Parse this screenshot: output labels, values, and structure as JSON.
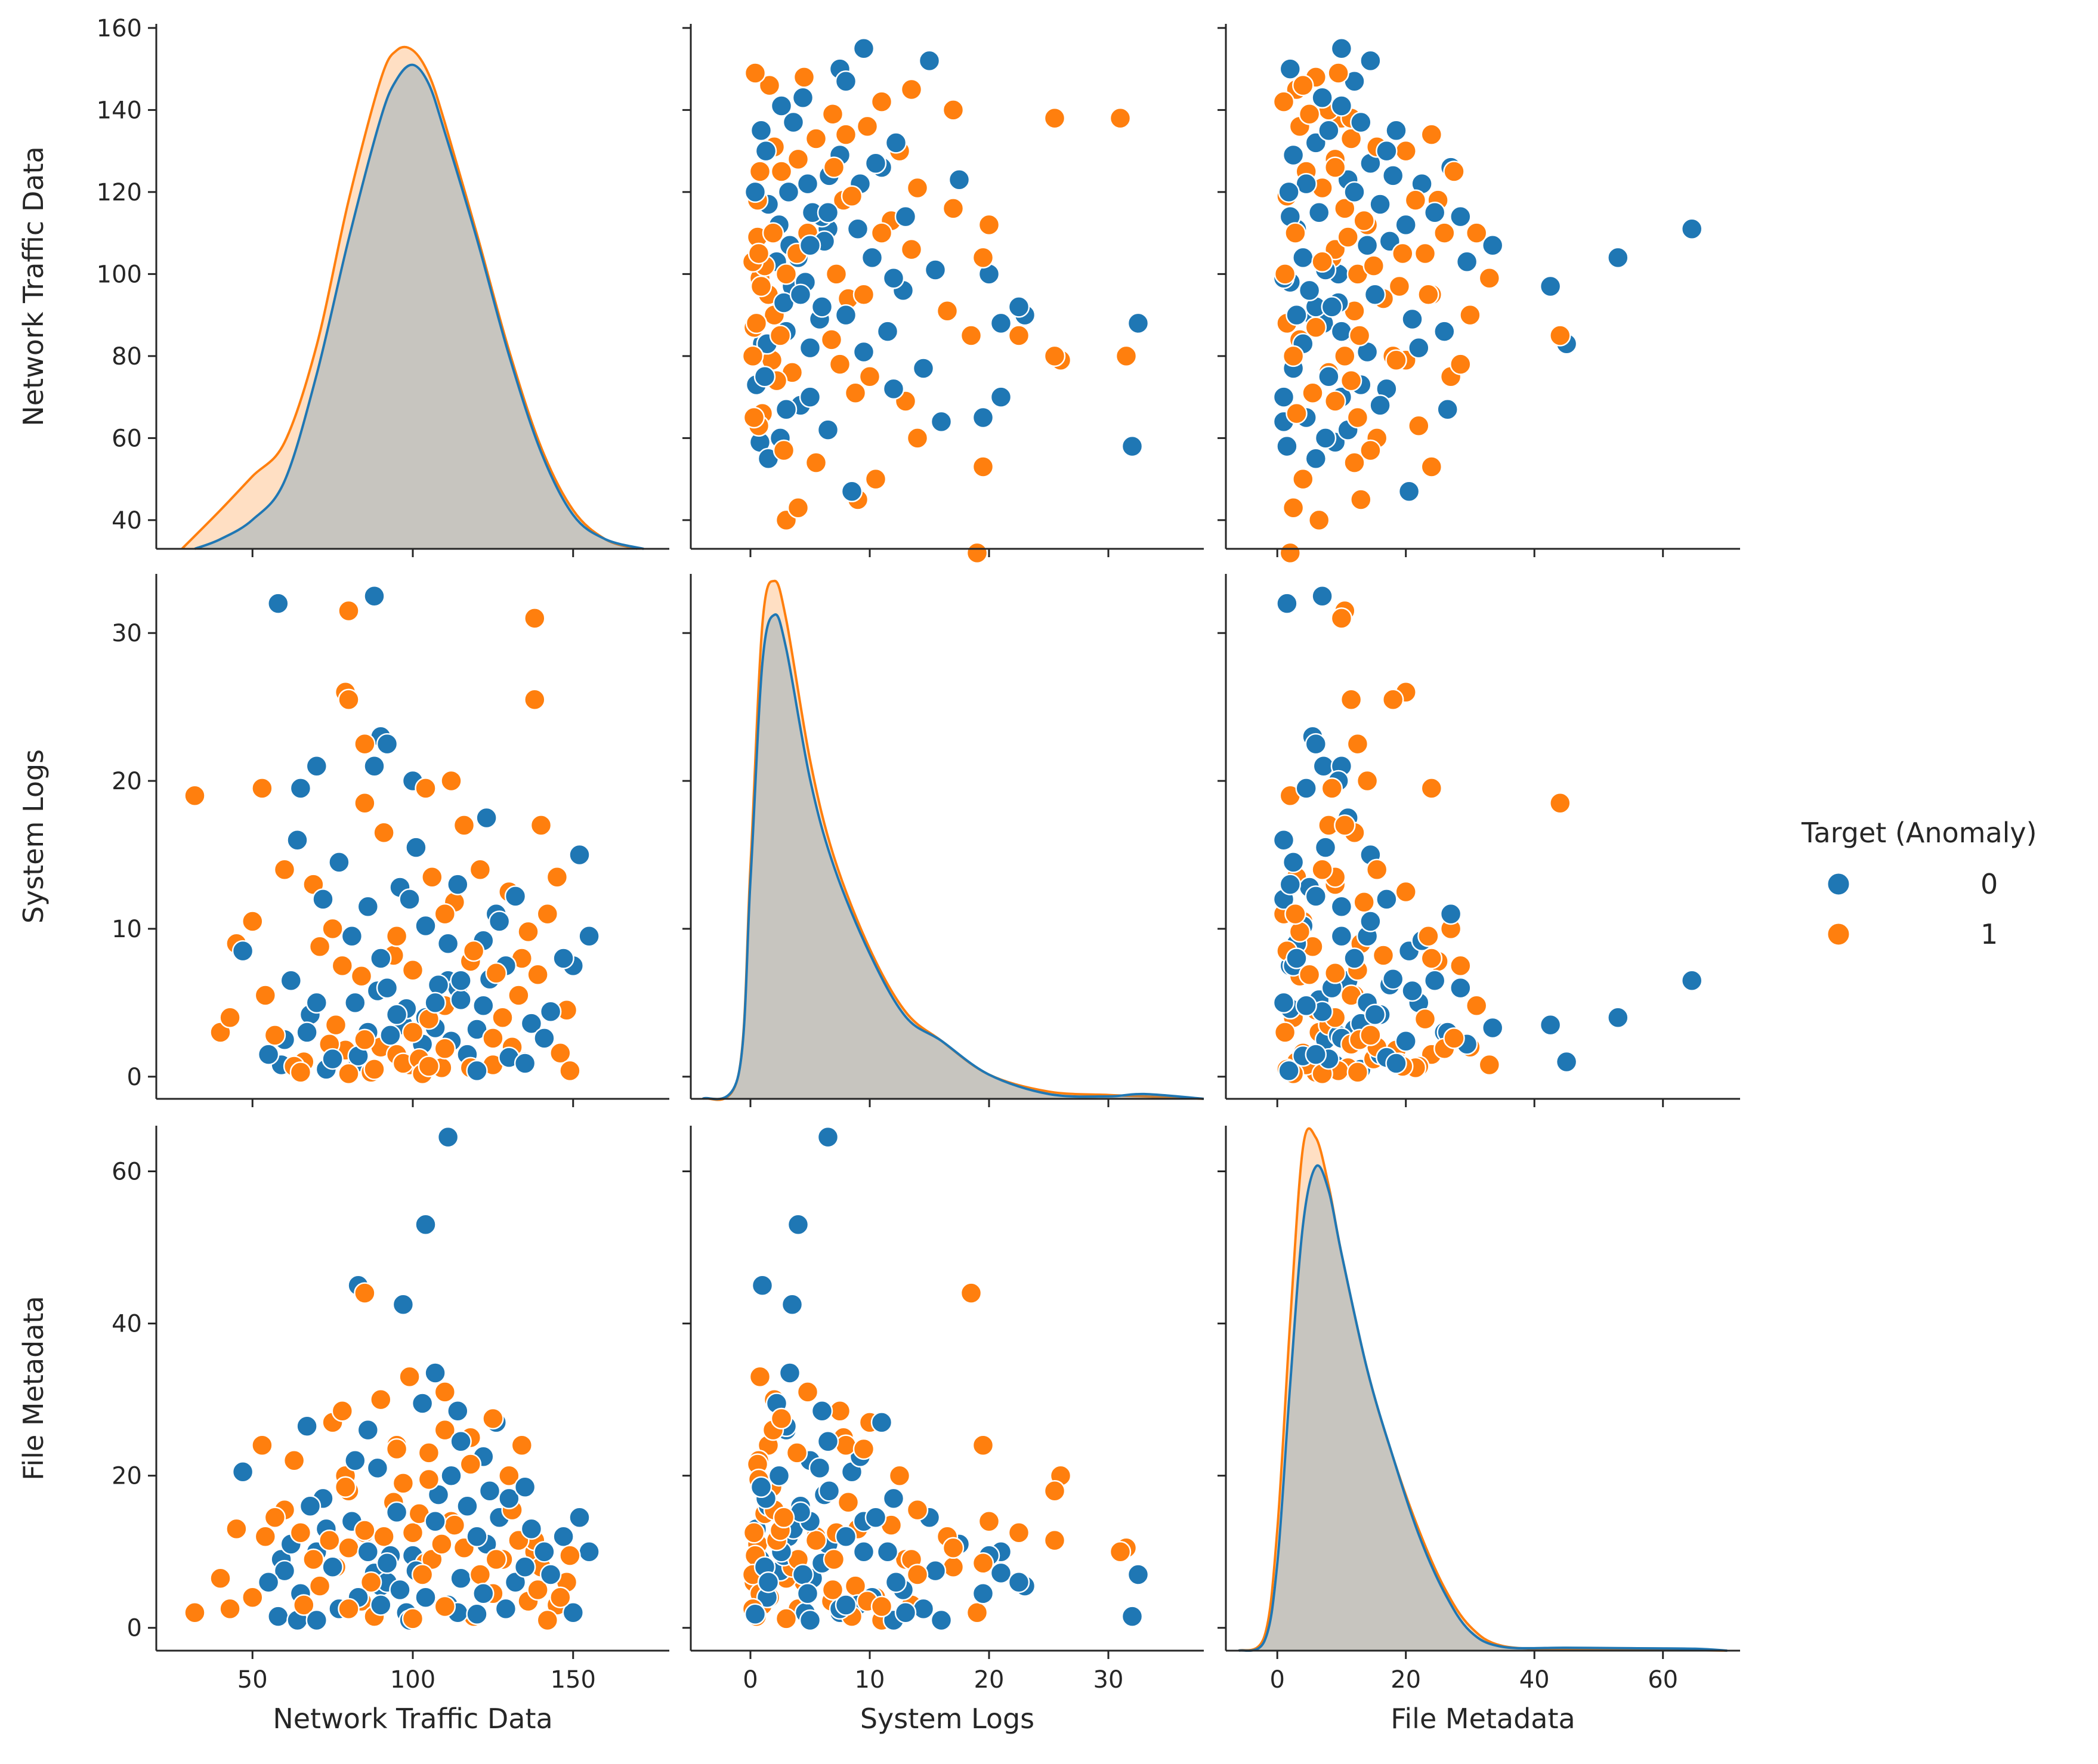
{
  "chart_data": {
    "type": "scatter",
    "subtype": "pairplot",
    "variables": [
      "Network Traffic Data",
      "System Logs",
      "File Metadata"
    ],
    "hue": "Target (Anomaly)",
    "classes": [
      {
        "label": "0",
        "color": "#1f77b4"
      },
      {
        "label": "1",
        "color": "#ff7f0e"
      }
    ],
    "axes": {
      "Network Traffic Data": {
        "label": "Network Traffic Data",
        "range": [
          20,
          180
        ],
        "ticks": [
          50,
          100,
          150
        ],
        "row_ticks": [
          40,
          60,
          80,
          100,
          120,
          140,
          160
        ]
      },
      "System Logs": {
        "label": "System Logs",
        "range": [
          -5,
          38
        ],
        "ticks": [
          0,
          10,
          20,
          30
        ],
        "row_ticks": [
          0,
          10,
          20,
          30
        ]
      },
      "File Metadata": {
        "label": "File Metadata",
        "range": [
          -8,
          72
        ],
        "ticks": [
          0,
          20,
          40,
          60
        ],
        "row_ticks": [
          0,
          20,
          40,
          60
        ]
      }
    },
    "row_ranges": {
      "Network Traffic Data": [
        33,
        161
      ],
      "System Logs": [
        -1.5,
        34
      ],
      "File Metadata": [
        -3,
        66
      ]
    },
    "distributions": {
      "Network Traffic Data": {
        "0": {
          "x": [
            32,
            40,
            50,
            60,
            70,
            80,
            90,
            95,
            100,
            105,
            110,
            120,
            130,
            140,
            150,
            160,
            172
          ],
          "density": [
            0,
            0.02,
            0.06,
            0.14,
            0.36,
            0.64,
            0.89,
            0.97,
            1.0,
            0.96,
            0.86,
            0.64,
            0.4,
            0.2,
            0.07,
            0.02,
            0
          ]
        },
        "1": {
          "x": [
            28,
            40,
            50,
            60,
            70,
            80,
            90,
            95,
            100,
            105,
            110,
            120,
            130,
            140,
            150,
            160,
            170
          ],
          "density": [
            0,
            0.08,
            0.15,
            0.22,
            0.42,
            0.72,
            0.97,
            1.03,
            1.03,
            0.98,
            0.88,
            0.65,
            0.41,
            0.21,
            0.08,
            0.02,
            0
          ]
        }
      },
      "System Logs": {
        "0": {
          "x": [
            -4,
            -1,
            0,
            1,
            2,
            3,
            5,
            7,
            10,
            13,
            16,
            20,
            25,
            30,
            33,
            38
          ],
          "density": [
            0,
            0.05,
            0.45,
            0.9,
            1.0,
            0.93,
            0.66,
            0.48,
            0.3,
            0.17,
            0.12,
            0.05,
            0.01,
            0.005,
            0.01,
            0
          ]
        },
        "1": {
          "x": [
            -4,
            -1,
            0,
            1,
            2,
            3,
            5,
            7,
            10,
            13,
            16,
            20,
            25,
            30,
            33,
            38
          ],
          "density": [
            0,
            0.05,
            0.48,
            0.98,
            1.07,
            0.99,
            0.7,
            0.5,
            0.31,
            0.18,
            0.12,
            0.05,
            0.015,
            0.008,
            0.005,
            0
          ]
        }
      },
      "File Metadata": {
        "0": {
          "x": [
            -6,
            -2,
            0,
            2,
            4,
            6,
            8,
            10,
            14,
            18,
            22,
            26,
            30,
            35,
            45,
            55,
            65,
            70
          ],
          "density": [
            0,
            0.02,
            0.18,
            0.55,
            0.88,
            1.0,
            0.95,
            0.82,
            0.58,
            0.4,
            0.24,
            0.12,
            0.04,
            0.008,
            0.006,
            0.005,
            0.004,
            0
          ]
        },
        "1": {
          "x": [
            -6,
            -2,
            0,
            2,
            4,
            6,
            8,
            10,
            14,
            18,
            22,
            26,
            30,
            35,
            45,
            55,
            65,
            70
          ],
          "density": [
            0,
            0.03,
            0.25,
            0.68,
            1.04,
            1.06,
            0.96,
            0.82,
            0.58,
            0.4,
            0.25,
            0.13,
            0.05,
            0.01,
            0.003,
            0.002,
            0.001,
            0
          ]
        }
      }
    },
    "points": {
      "columns": [
        "Network Traffic Data",
        "System Logs",
        "File Metadata",
        "Target (Anomaly)"
      ],
      "rows": [
        [
          58,
          32.0,
          1.5,
          0
        ],
        [
          88,
          32.5,
          7.0,
          0
        ],
        [
          80,
          31.5,
          10.5,
          1
        ],
        [
          138,
          31.0,
          10.0,
          1
        ],
        [
          111,
          6.5,
          64.5,
          0
        ],
        [
          104,
          4.0,
          53.0,
          0
        ],
        [
          83,
          1.0,
          45.0,
          0
        ],
        [
          97,
          3.5,
          42.5,
          0
        ],
        [
          85,
          18.5,
          44.0,
          1
        ],
        [
          59,
          0.8,
          9.0,
          0
        ],
        [
          32,
          19.0,
          2.0,
          1
        ],
        [
          138,
          25.5,
          11.5,
          1
        ],
        [
          90,
          23.0,
          5.5,
          0
        ],
        [
          88,
          21.0,
          7.2,
          0
        ],
        [
          92,
          22.5,
          6.0,
          0
        ],
        [
          79,
          26.0,
          20.0,
          1
        ],
        [
          80,
          25.5,
          18.0,
          1
        ],
        [
          70,
          21.0,
          10.0,
          0
        ],
        [
          65,
          19.5,
          4.5,
          0
        ],
        [
          53,
          19.5,
          24.0,
          1
        ],
        [
          85,
          22.5,
          12.5,
          1
        ],
        [
          100,
          20.0,
          9.5,
          0
        ],
        [
          104,
          19.5,
          8.5,
          1
        ],
        [
          112,
          20.0,
          14.0,
          1
        ],
        [
          123,
          17.5,
          11.0,
          0
        ],
        [
          140,
          17.0,
          8.0,
          1
        ],
        [
          145,
          13.5,
          3.0,
          1
        ],
        [
          152,
          15.0,
          14.5,
          0
        ],
        [
          155,
          9.5,
          10.0,
          0
        ],
        [
          150,
          7.5,
          2.0,
          0
        ],
        [
          148,
          4.5,
          6.0,
          1
        ],
        [
          40,
          3.0,
          6.5,
          1
        ],
        [
          43,
          4.0,
          2.5,
          1
        ],
        [
          45,
          9.0,
          13.0,
          1
        ],
        [
          47,
          8.5,
          20.5,
          0
        ],
        [
          50,
          10.5,
          4.0,
          1
        ],
        [
          54,
          5.5,
          12.0,
          1
        ],
        [
          60,
          14.0,
          15.5,
          1
        ],
        [
          64,
          16.0,
          1.0,
          0
        ],
        [
          69,
          13.0,
          9.0,
          1
        ],
        [
          72,
          12.0,
          17.0,
          0
        ],
        [
          75,
          10.0,
          27.0,
          1
        ],
        [
          78,
          7.5,
          28.5,
          1
        ],
        [
          82,
          5.0,
          22.0,
          0
        ],
        [
          86,
          3.0,
          26.0,
          0
        ],
        [
          90,
          2.0,
          30.0,
          1
        ],
        [
          95,
          1.5,
          24.0,
          1
        ],
        [
          99,
          0.8,
          33.0,
          1
        ],
        [
          103,
          2.2,
          29.5,
          0
        ],
        [
          107,
          3.3,
          33.5,
          0
        ],
        [
          110,
          4.8,
          31.0,
          1
        ],
        [
          114,
          6.0,
          28.5,
          0
        ],
        [
          118,
          7.8,
          25.0,
          1
        ],
        [
          122,
          9.2,
          22.5,
          0
        ],
        [
          126,
          11.0,
          27.0,
          0
        ],
        [
          130,
          12.5,
          20.0,
          1
        ],
        [
          134,
          8.0,
          24.0,
          1
        ],
        [
          60,
          2.5,
          7.5,
          0
        ],
        [
          62,
          6.5,
          11.0,
          0
        ],
        [
          66,
          1.0,
          3.0,
          1
        ],
        [
          68,
          4.2,
          16.0,
          0
        ],
        [
          71,
          8.8,
          5.5,
          1
        ],
        [
          73,
          0.5,
          13.0,
          0
        ],
        [
          76,
          3.5,
          8.0,
          1
        ],
        [
          77,
          14.5,
          2.5,
          0
        ],
        [
          79,
          1.8,
          18.5,
          1
        ],
        [
          81,
          9.5,
          14.0,
          0
        ],
        [
          84,
          6.8,
          3.5,
          1
        ],
        [
          86,
          11.5,
          10.0,
          0
        ],
        [
          87,
          0.3,
          6.0,
          1
        ],
        [
          89,
          5.8,
          21.0,
          0
        ],
        [
          91,
          16.5,
          12.0,
          1
        ],
        [
          93,
          2.8,
          9.5,
          0
        ],
        [
          94,
          8.2,
          16.5,
          1
        ],
        [
          96,
          12.8,
          5.0,
          0
        ],
        [
          97,
          0.9,
          19.0,
          1
        ],
        [
          98,
          4.6,
          2.0,
          0
        ],
        [
          100,
          7.2,
          12.5,
          1
        ],
        [
          101,
          15.5,
          7.5,
          0
        ],
        [
          102,
          1.2,
          15.0,
          1
        ],
        [
          104,
          10.2,
          4.0,
          0
        ],
        [
          105,
          3.9,
          23.0,
          1
        ],
        [
          106,
          13.5,
          9.0,
          1
        ],
        [
          108,
          6.2,
          17.5,
          0
        ],
        [
          109,
          0.6,
          11.0,
          1
        ],
        [
          111,
          9.0,
          3.0,
          0
        ],
        [
          112,
          2.4,
          20.0,
          0
        ],
        [
          113,
          11.8,
          13.5,
          1
        ],
        [
          115,
          5.2,
          6.5,
          0
        ],
        [
          116,
          17.0,
          10.5,
          1
        ],
        [
          117,
          1.5,
          16.0,
          0
        ],
        [
          119,
          8.5,
          1.5,
          1
        ],
        [
          120,
          3.2,
          12.0,
          0
        ],
        [
          121,
          14.0,
          7.0,
          1
        ],
        [
          124,
          6.6,
          18.0,
          0
        ],
        [
          125,
          0.8,
          4.5,
          1
        ],
        [
          127,
          10.5,
          14.5,
          0
        ],
        [
          128,
          4.0,
          9.0,
          1
        ],
        [
          129,
          7.5,
          2.5,
          0
        ],
        [
          131,
          2.0,
          15.5,
          1
        ],
        [
          132,
          12.2,
          6.0,
          0
        ],
        [
          133,
          5.5,
          11.5,
          1
        ],
        [
          135,
          1.0,
          8.0,
          0
        ],
        [
          136,
          9.8,
          3.5,
          1
        ],
        [
          137,
          3.6,
          13.0,
          0
        ],
        [
          139,
          6.9,
          5.0,
          1
        ],
        [
          141,
          2.6,
          10.0,
          0
        ],
        [
          142,
          11.0,
          1.0,
          1
        ],
        [
          143,
          4.4,
          7.0,
          0
        ],
        [
          146,
          1.6,
          4.0,
          1
        ],
        [
          147,
          8.0,
          12.0,
          0
        ],
        [
          149,
          0.4,
          9.5,
          1
        ],
        [
          63,
          0.7,
          22.0,
          1
        ],
        [
          67,
          3.0,
          26.5,
          0
        ],
        [
          74,
          2.2,
          11.5,
          1
        ],
        [
          83,
          1.4,
          4.0,
          0
        ],
        [
          88,
          0.5,
          1.5,
          1
        ],
        [
          92,
          6.0,
          8.5,
          0
        ],
        [
          95,
          9.5,
          23.5,
          1
        ],
        [
          99,
          12.0,
          1.0,
          0
        ],
        [
          103,
          0.2,
          7.0,
          1
        ],
        [
          107,
          5.0,
          14.0,
          0
        ],
        [
          110,
          1.9,
          26.0,
          1
        ],
        [
          114,
          13.0,
          2.0,
          0
        ],
        [
          118,
          0.6,
          21.5,
          1
        ],
        [
          122,
          4.8,
          4.5,
          0
        ],
        [
          126,
          7.0,
          9.0,
          1
        ],
        [
          130,
          1.3,
          17.0,
          0
        ],
        [
          70,
          5.0,
          1.0,
          0
        ],
        [
          80,
          0.2,
          2.5,
          1
        ],
        [
          90,
          8.0,
          3.0,
          0
        ],
        [
          100,
          3.0,
          1.2,
          1
        ],
        [
          110,
          11.0,
          2.8,
          1
        ],
        [
          120,
          0.4,
          1.8,
          0
        ],
        [
          85,
          2.5,
          12.8,
          1
        ],
        [
          95,
          4.2,
          15.2,
          0
        ],
        [
          105,
          0.7,
          19.5,
          1
        ],
        [
          115,
          6.5,
          24.5,
          0
        ],
        [
          125,
          2.6,
          27.5,
          1
        ],
        [
          135,
          0.9,
          18.5,
          0
        ],
        [
          75,
          1.2,
          8.0,
          0
        ],
        [
          65,
          0.3,
          12.5,
          1
        ],
        [
          55,
          1.5,
          6.0,
          0
        ],
        [
          57,
          2.8,
          14.5,
          1
        ]
      ]
    },
    "legend": {
      "title": "Target (Anomaly)",
      "labels": [
        "0",
        "1"
      ],
      "placement": "right"
    }
  }
}
